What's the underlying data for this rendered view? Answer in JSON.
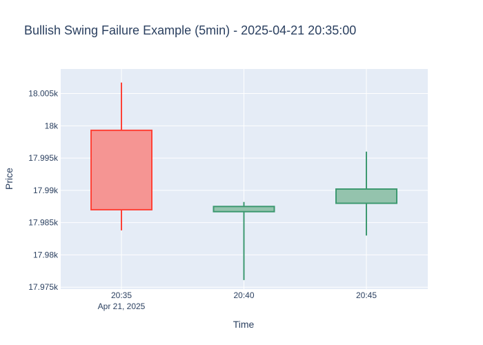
{
  "chart_data": {
    "type": "candlestick",
    "title": "Bullish Swing Failure Example (5min) - 2025-04-21 20:35:00",
    "xlabel": "Time",
    "ylabel": "Price",
    "x_date_label": "Apr 21, 2025",
    "categories": [
      "20:35",
      "20:40",
      "20:45"
    ],
    "ylim": [
      17974.7,
      18008.8
    ],
    "y_ticks": [
      17975,
      17980,
      17985,
      17990,
      17995,
      18000,
      18005
    ],
    "y_tick_labels": [
      "17.975k",
      "17.98k",
      "17.985k",
      "17.99k",
      "17.995k",
      "18k",
      "18.005k"
    ],
    "grid": true,
    "legend": "none",
    "candles": [
      {
        "time": "20:35",
        "open": 17999.3,
        "high": 18006.7,
        "low": 17983.8,
        "close": 17987.0
      },
      {
        "time": "20:40",
        "open": 17986.7,
        "high": 17988.2,
        "low": 17976.1,
        "close": 17987.5
      },
      {
        "time": "20:45",
        "open": 17988.0,
        "high": 17996.0,
        "low": 17983.0,
        "close": 17990.2
      }
    ],
    "colors": {
      "increasing_line": "#3d9970",
      "increasing_fill": "#94c3ad",
      "decreasing_line": "#ff4136",
      "decreasing_fill": "#f59593",
      "plot_bg": "#e5ecf6",
      "text": "#2a3f5f"
    }
  }
}
